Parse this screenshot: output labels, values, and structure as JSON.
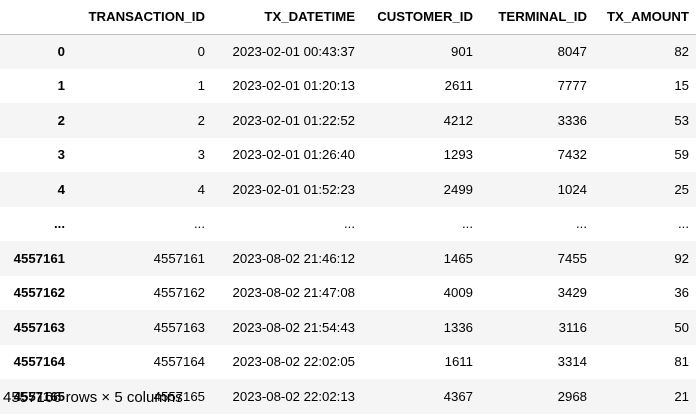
{
  "table": {
    "columns": [
      {
        "key": "index",
        "label": ""
      },
      {
        "key": "transaction_id",
        "label": "TRANSACTION_ID"
      },
      {
        "key": "tx_datetime",
        "label": "TX_DATETIME"
      },
      {
        "key": "customer_id",
        "label": "CUSTOMER_ID"
      },
      {
        "key": "terminal_id",
        "label": "TERMINAL_ID"
      },
      {
        "key": "tx_amount",
        "label": "TX_AMOUNT"
      }
    ],
    "rows": [
      {
        "index": "0",
        "cells": [
          "0",
          "2023-02-01 00:43:37",
          "901",
          "8047",
          "82"
        ]
      },
      {
        "index": "1",
        "cells": [
          "1",
          "2023-02-01 01:20:13",
          "2611",
          "7777",
          "15"
        ]
      },
      {
        "index": "2",
        "cells": [
          "2",
          "2023-02-01 01:22:52",
          "4212",
          "3336",
          "53"
        ]
      },
      {
        "index": "3",
        "cells": [
          "3",
          "2023-02-01 01:26:40",
          "1293",
          "7432",
          "59"
        ]
      },
      {
        "index": "4",
        "cells": [
          "4",
          "2023-02-01 01:52:23",
          "2499",
          "1024",
          "25"
        ]
      },
      {
        "index": "...",
        "cells": [
          "...",
          "...",
          "...",
          "...",
          "..."
        ]
      },
      {
        "index": "4557161",
        "cells": [
          "4557161",
          "2023-08-02 21:46:12",
          "1465",
          "7455",
          "92"
        ]
      },
      {
        "index": "4557162",
        "cells": [
          "4557162",
          "2023-08-02 21:47:08",
          "4009",
          "3429",
          "36"
        ]
      },
      {
        "index": "4557163",
        "cells": [
          "4557163",
          "2023-08-02 21:54:43",
          "1336",
          "3116",
          "50"
        ]
      },
      {
        "index": "4557164",
        "cells": [
          "4557164",
          "2023-08-02 22:02:05",
          "1611",
          "3314",
          "81"
        ]
      },
      {
        "index": "4557165",
        "cells": [
          "4557165",
          "2023-08-02 22:02:13",
          "4367",
          "2968",
          "21"
        ]
      }
    ]
  },
  "shape_caption": "4557166 rows × 5 columns"
}
